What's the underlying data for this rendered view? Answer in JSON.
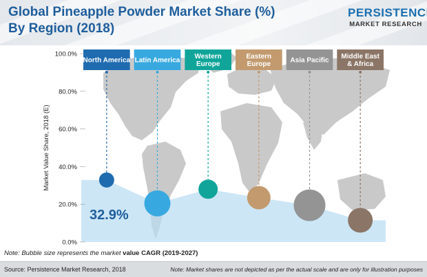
{
  "header": {
    "title_line1": "Global Pineapple Powder Market Share (%)",
    "title_line2": "By Region (2018)",
    "logo_line1": "PERSISTENCE",
    "logo_line2": "MARKET RESEARCH"
  },
  "chart_data": {
    "type": "area",
    "ylabel": "Market Value Share, 2018 (E)",
    "ylim": [
      0,
      100
    ],
    "y_ticks": [
      "0.0%",
      "20.0%",
      "40.0%",
      "60.0%",
      "80.0%",
      "100.0%"
    ],
    "highlight_value": "32.9%",
    "categories": [
      "North America",
      "Latin America",
      "Western Europe",
      "Eastern Europe",
      "Asia Pacific",
      "Middle East & Africa"
    ],
    "label_lines": [
      [
        "North America"
      ],
      [
        "Latin America"
      ],
      [
        "Western",
        "Europe"
      ],
      [
        "Eastern",
        "Europe"
      ],
      [
        "Asia Pacific"
      ],
      [
        "Middle East",
        "& Africa"
      ]
    ],
    "values": [
      32.9,
      20.5,
      28.0,
      23.5,
      19.5,
      11.5
    ],
    "bubble_sizes": [
      11,
      19,
      14,
      17,
      23,
      18
    ],
    "colors": [
      "#1f6bb0",
      "#38a9e0",
      "#11a59a",
      "#c29a6e",
      "#949494",
      "#8b7566"
    ],
    "area_color": "#b8dcf2",
    "map_color": "#c9c9c9"
  },
  "notes": {
    "bubble_note_prefix": "Note: Bubble size represents the market ",
    "bubble_note_bold": "value CAGR (2019-2027)",
    "source": "Source: Persistence Market Research, 2018",
    "footer_note": "Note: Market shares are not depicted as per the actual scale and are only for illustration purposes"
  }
}
